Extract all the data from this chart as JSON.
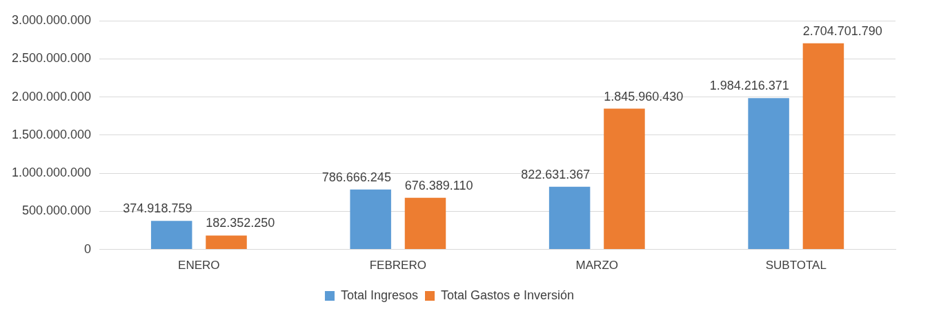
{
  "chart_data": {
    "type": "bar",
    "categories": [
      "ENERO",
      "FEBRERO",
      "MARZO",
      "SUBTOTAL"
    ],
    "series": [
      {
        "name": "Total Ingresos",
        "color": "#5b9bd5",
        "values": [
          374918759,
          786666245,
          822631367,
          1984216371
        ],
        "value_labels": [
          "374.918.759",
          "786.666.245",
          "822.631.367",
          "1.984.216.371"
        ]
      },
      {
        "name": "Total Gastos e Inversión",
        "color": "#ed7d31",
        "values": [
          182352250,
          676389110,
          1845960430,
          2704701790
        ],
        "value_labels": [
          "182.352.250",
          "676.389.110",
          "1.845.960.430",
          "2.704.701.790"
        ]
      }
    ],
    "ylim": [
      0,
      3000000000
    ],
    "yticks": [
      {
        "value": 0,
        "label": "0"
      },
      {
        "value": 500000000,
        "label": "500.000.000"
      },
      {
        "value": 1000000000,
        "label": "1.000.000.000"
      },
      {
        "value": 1500000000,
        "label": "1.500.000.000"
      },
      {
        "value": 2000000000,
        "label": "2.000.000.000"
      },
      {
        "value": 2500000000,
        "label": "2.500.000.000"
      },
      {
        "value": 3000000000,
        "label": "3.000.000.000"
      }
    ],
    "grid": "y",
    "legend": "bottom"
  }
}
